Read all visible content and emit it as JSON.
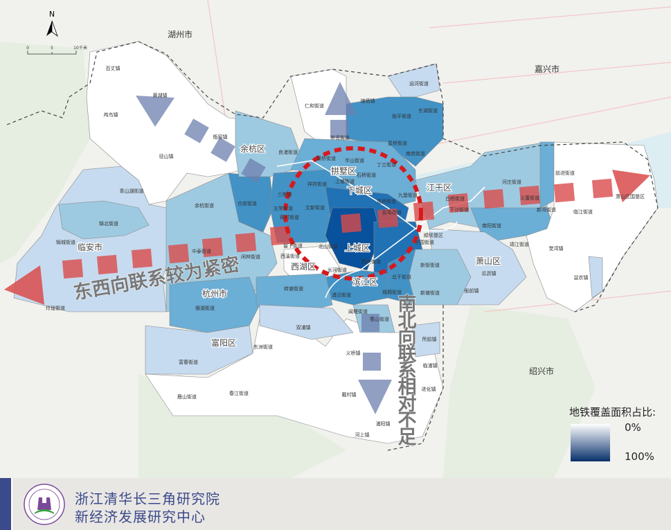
{
  "map": {
    "north_label": "N",
    "scale": {
      "ticks": [
        "0",
        "5",
        "10"
      ],
      "unit": "千米"
    },
    "cities": [
      "湖州市",
      "嘉兴市",
      "绍兴市"
    ],
    "districts": [
      "余杭区",
      "拱墅区",
      "下城区",
      "江干区",
      "西湖区",
      "上城区",
      "滨江区",
      "萧山区",
      "富阳区",
      "临安市",
      "杭州市"
    ],
    "towns": [
      "百丈镇",
      "鸬鸟镇",
      "黄湖镇",
      "径山镇",
      "瓶窑镇",
      "良渚街道",
      "仁和街道",
      "塘栖镇",
      "运河街道",
      "崇贤街道",
      "临平街道",
      "东湖街道",
      "星桥街道",
      "南苑街道",
      "康桥街道",
      "半山街道",
      "丁兰街道",
      "石桥街道",
      "笕桥街道",
      "九堡街道",
      "彭埠街道",
      "祥符街道",
      "上塘街道",
      "三墩镇",
      "文新街道",
      "五常街道",
      "蒋村街道",
      "留下街道",
      "北山街道",
      "西溪街道",
      "长河街道",
      "浦沿街道",
      "西兴街道",
      "北干街道",
      "宁围街道",
      "新街街道",
      "新塘街道",
      "城厢街道",
      "蜀山街道",
      "闻堰街道",
      "白杨街道",
      "下沙街道",
      "河庄街道",
      "义蓬街道",
      "新湾街道",
      "南阳街道",
      "靖江街道",
      "萧山区围垦区",
      "临江街道",
      "前进街道",
      "党湾镇",
      "益农镇",
      "瓜沥镇",
      "衙前镇",
      "所前镇",
      "临浦镇",
      "进化镇",
      "浦阳镇",
      "河上镇",
      "戴村镇",
      "义桥镇",
      "双浦镇",
      "转塘街道",
      "银湖街道",
      "东洲街道",
      "富春街道",
      "鹿山街道",
      "春江街道",
      "青山湖街道",
      "锦北街道",
      "锦城街道",
      "玲珑街道",
      "余杭街道",
      "仓前街道",
      "中泰街道",
      "闲林街道",
      "顺坝垦区"
    ],
    "annotations": {
      "east_west": "东西向联系较为紧密",
      "north_south": "南北向联系相对不足"
    },
    "colors": {
      "ring": "#d7191c",
      "ew_arrow": "#d94b4b",
      "ns_arrow": "#6c7fae",
      "scale_low": "#ffffff",
      "scale_high": "#08306b"
    }
  },
  "legend": {
    "title": "地铁覆盖面积占比:",
    "min_label": "0%",
    "max_label": "100%"
  },
  "footer": {
    "line1": "浙江清华长三角研究院",
    "line2": "新经济发展研究中心"
  }
}
